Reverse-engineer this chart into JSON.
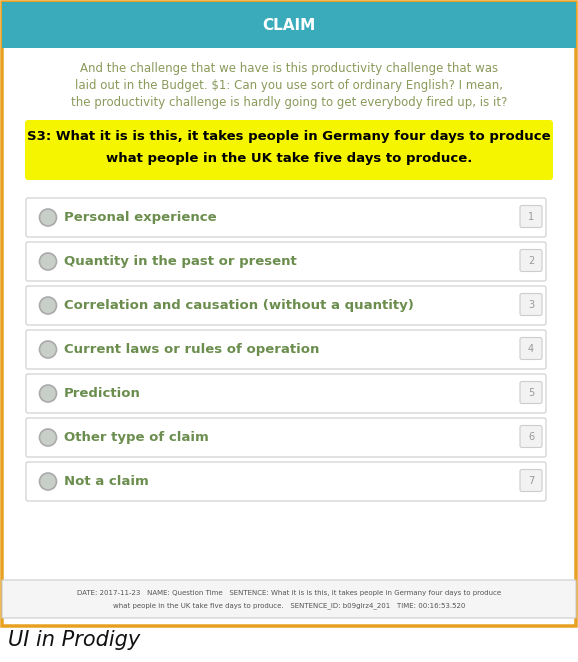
{
  "title": "CLAIM",
  "header_bg": "#3aabbb",
  "header_text_color": "#ffffff",
  "border_color": "#e8a020",
  "body_bg": "#ffffff",
  "paragraph_line1": "And the challenge that we have is this productivity challenge that was",
  "paragraph_line2": "laid out in the Budget. $1: Can you use sort of ordinary English? I mean,",
  "paragraph_line3": "the productivity challenge is hardly going to get everybody fired up, is it?",
  "highlight_line1": "S3: What it is is this, it takes people in Germany four days to produce",
  "highlight_line2": "what people in the UK take five days to produce.",
  "highlight_bg": "#f5f500",
  "highlight_text_color": "#000000",
  "paragraph_color": "#8a9a5b",
  "options": [
    {
      "label": "Personal experience",
      "num": "1"
    },
    {
      "label": "Quantity in the past or present",
      "num": "2"
    },
    {
      "label": "Correlation and causation (without a quantity)",
      "num": "3"
    },
    {
      "label": "Current laws or rules of operation",
      "num": "4"
    },
    {
      "label": "Prediction",
      "num": "5"
    },
    {
      "label": "Other type of claim",
      "num": "6"
    },
    {
      "label": "Not a claim",
      "num": "7"
    }
  ],
  "option_text_color": "#6b8e4e",
  "option_bg": "#ffffff",
  "option_border": "#cccccc",
  "option_circle_fill": "#c8cec8",
  "option_circle_edge": "#aaaaaa",
  "footer_bg": "#f5f5f5",
  "footer_border": "#cccccc",
  "footer_line1": "DATE: 2017-11-23   NAME: Question Time   SENTENCE: What it is is this, it takes people in Germany four days to produce",
  "footer_line2": "what people in the UK take five days to produce.   SENTENCE_ID: b09glrz4_201   TIME: 00:16:53.520",
  "caption": "UI in Prodigy",
  "fig_width": 5.78,
  "fig_height": 6.62,
  "dpi": 100
}
